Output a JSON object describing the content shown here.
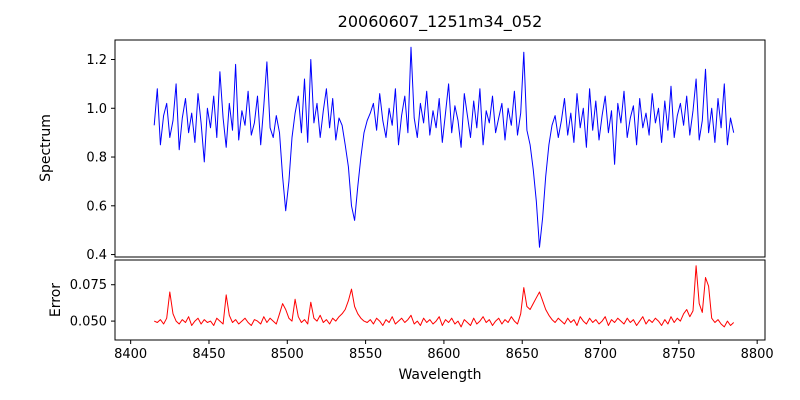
{
  "chart_data": {
    "type": "line",
    "title": "20060607_1251m34_052",
    "xlabel": "Wavelength",
    "grid": false,
    "legend": "none",
    "xlim": [
      8390,
      8805
    ],
    "x_range": [
      8415,
      8785
    ],
    "x_start": 8415,
    "x_step": 2,
    "xticks": [
      {
        "v": 8400,
        "label": "8400"
      },
      {
        "v": 8450,
        "label": "8450"
      },
      {
        "v": 8500,
        "label": "8500"
      },
      {
        "v": 8550,
        "label": "8550"
      },
      {
        "v": 8600,
        "label": "8600"
      },
      {
        "v": 8650,
        "label": "8650"
      },
      {
        "v": 8700,
        "label": "8700"
      },
      {
        "v": 8750,
        "label": "8750"
      },
      {
        "v": 8800,
        "label": "8800"
      }
    ],
    "absorption_lines": [
      {
        "center": 8498,
        "min_value": 0.58
      },
      {
        "center": 8542,
        "min_value": 0.54
      },
      {
        "center": 8662,
        "min_value": 0.43
      }
    ],
    "panels": [
      {
        "name": "spectrum",
        "ylabel": "Spectrum",
        "color": "#0000ff",
        "ylim": [
          0.39,
          1.28
        ],
        "yticks": [
          {
            "v": 0.4,
            "label": "0.4"
          },
          {
            "v": 0.6,
            "label": "0.6"
          },
          {
            "v": 0.8,
            "label": "0.8"
          },
          {
            "v": 1.0,
            "label": "1.0"
          },
          {
            "v": 1.2,
            "label": "1.2"
          }
        ],
        "values": [
          0.93,
          1.08,
          0.85,
          0.97,
          1.02,
          0.88,
          0.95,
          1.1,
          0.83,
          0.96,
          1.04,
          0.9,
          0.98,
          0.86,
          1.06,
          0.94,
          0.78,
          1.0,
          0.92,
          1.05,
          0.88,
          1.15,
          0.96,
          0.84,
          1.02,
          0.91,
          1.18,
          0.87,
          0.99,
          0.93,
          1.07,
          0.89,
          0.94,
          1.05,
          0.85,
          1.01,
          1.19,
          0.92,
          0.88,
          0.97,
          0.9,
          0.72,
          0.58,
          0.7,
          0.88,
          0.98,
          1.05,
          0.9,
          1.12,
          0.86,
          1.2,
          0.94,
          1.02,
          0.88,
          0.99,
          1.08,
          0.92,
          1.04,
          0.87,
          0.96,
          0.93,
          0.85,
          0.76,
          0.6,
          0.54,
          0.68,
          0.8,
          0.9,
          0.95,
          0.98,
          1.02,
          0.91,
          1.06,
          0.95,
          0.88,
          1.0,
          0.93,
          1.08,
          0.85,
          0.97,
          1.05,
          0.9,
          1.25,
          0.96,
          0.88,
          1.02,
          0.94,
          1.07,
          0.89,
          0.99,
          0.92,
          1.04,
          0.86,
          0.98,
          1.1,
          0.9,
          1.01,
          0.95,
          0.84,
          1.06,
          0.97,
          0.88,
          1.03,
          0.92,
          1.08,
          0.85,
          0.99,
          0.94,
          1.05,
          0.9,
          0.96,
          1.02,
          0.87,
          1.0,
          0.93,
          1.07,
          0.89,
          0.98,
          1.23,
          0.91,
          0.85,
          0.75,
          0.62,
          0.43,
          0.55,
          0.72,
          0.85,
          0.93,
          0.97,
          0.88,
          0.95,
          1.04,
          0.89,
          0.98,
          0.86,
          1.06,
          0.92,
          1.0,
          0.84,
          1.08,
          0.91,
          1.03,
          0.87,
          0.97,
          1.05,
          0.9,
          0.99,
          0.77,
          1.02,
          0.94,
          1.07,
          0.88,
          0.96,
          1.01,
          0.85,
          1.04,
          0.92,
          0.98,
          0.89,
          1.06,
          0.94,
          1.0,
          0.86,
          1.03,
          0.91,
          1.09,
          0.88,
          0.97,
          1.02,
          0.93,
          1.05,
          0.89,
          0.99,
          1.12,
          0.87,
          0.95,
          1.16,
          0.9,
          1.0,
          0.86,
          1.04,
          0.92,
          1.1,
          0.85,
          0.96,
          0.9
        ]
      },
      {
        "name": "error",
        "ylabel": "Error",
        "color": "#ff0000",
        "ylim": [
          0.037,
          0.092
        ],
        "yticks": [
          {
            "v": 0.05,
            "label": "0.050"
          },
          {
            "v": 0.075,
            "label": "0.075"
          }
        ],
        "values": [
          0.05,
          0.049,
          0.051,
          0.048,
          0.052,
          0.07,
          0.055,
          0.05,
          0.048,
          0.051,
          0.049,
          0.053,
          0.047,
          0.05,
          0.052,
          0.048,
          0.051,
          0.049,
          0.05,
          0.047,
          0.052,
          0.05,
          0.048,
          0.068,
          0.054,
          0.049,
          0.051,
          0.048,
          0.05,
          0.052,
          0.049,
          0.047,
          0.051,
          0.05,
          0.048,
          0.053,
          0.049,
          0.052,
          0.05,
          0.048,
          0.055,
          0.062,
          0.058,
          0.052,
          0.05,
          0.065,
          0.053,
          0.049,
          0.051,
          0.048,
          0.063,
          0.052,
          0.05,
          0.054,
          0.049,
          0.051,
          0.048,
          0.052,
          0.05,
          0.053,
          0.055,
          0.058,
          0.064,
          0.072,
          0.06,
          0.055,
          0.052,
          0.05,
          0.049,
          0.051,
          0.048,
          0.052,
          0.05,
          0.047,
          0.051,
          0.049,
          0.053,
          0.048,
          0.05,
          0.052,
          0.049,
          0.051,
          0.054,
          0.048,
          0.05,
          0.047,
          0.052,
          0.049,
          0.051,
          0.048,
          0.05,
          0.053,
          0.047,
          0.051,
          0.049,
          0.052,
          0.048,
          0.05,
          0.046,
          0.051,
          0.049,
          0.047,
          0.052,
          0.048,
          0.05,
          0.053,
          0.049,
          0.051,
          0.047,
          0.05,
          0.052,
          0.048,
          0.051,
          0.049,
          0.053,
          0.05,
          0.048,
          0.055,
          0.073,
          0.06,
          0.058,
          0.062,
          0.066,
          0.07,
          0.064,
          0.058,
          0.054,
          0.051,
          0.049,
          0.052,
          0.05,
          0.048,
          0.052,
          0.049,
          0.051,
          0.047,
          0.053,
          0.05,
          0.048,
          0.052,
          0.049,
          0.051,
          0.048,
          0.05,
          0.053,
          0.047,
          0.051,
          0.049,
          0.052,
          0.05,
          0.048,
          0.052,
          0.049,
          0.051,
          0.047,
          0.05,
          0.053,
          0.048,
          0.051,
          0.049,
          0.052,
          0.05,
          0.047,
          0.051,
          0.048,
          0.053,
          0.049,
          0.052,
          0.05,
          0.055,
          0.058,
          0.053,
          0.057,
          0.088,
          0.062,
          0.056,
          0.08,
          0.074,
          0.052,
          0.049,
          0.051,
          0.048,
          0.046,
          0.05,
          0.047,
          0.049
        ]
      }
    ]
  }
}
